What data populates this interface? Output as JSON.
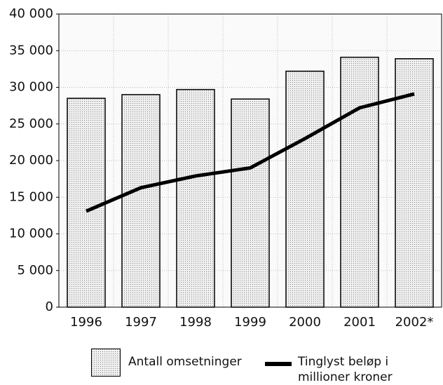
{
  "chart_data": {
    "type": "bar",
    "categories": [
      "1996",
      "1997",
      "1998",
      "1999",
      "2000",
      "2001",
      "2002*"
    ],
    "series": [
      {
        "name": "Antall omsetninger",
        "mark": "bar",
        "color": "#d9d9d9",
        "values": [
          28500,
          29000,
          29700,
          28400,
          32200,
          34100,
          33900
        ]
      },
      {
        "name": "Tinglyst beløp i millioner kroner",
        "mark": "line",
        "color": "#000000",
        "values": [
          13100,
          16300,
          17900,
          19000,
          23000,
          27200,
          29100
        ]
      }
    ],
    "ylim": [
      0,
      40000
    ],
    "yticks": [
      0,
      {
        "value": 5000,
        "label": "5 000"
      },
      {
        "value": 10000,
        "label": "10 000"
      },
      {
        "value": 15000,
        "label": "15 000"
      },
      {
        "value": 20000,
        "label": "20 000"
      },
      {
        "value": 25000,
        "label": "25 000"
      },
      {
        "value": 30000,
        "label": "30 000"
      },
      {
        "value": 35000,
        "label": "35 000"
      },
      {
        "value": 40000,
        "label": "40 000"
      }
    ],
    "grid": true
  }
}
